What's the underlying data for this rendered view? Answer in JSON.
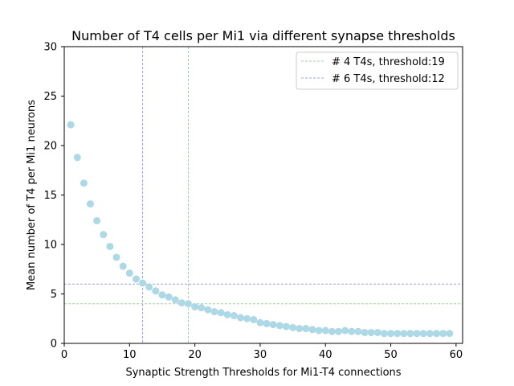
{
  "chart_data": {
    "type": "scatter",
    "title": "Number of T4 cells per Mi1 via different synapse thresholds",
    "xlabel": "Synaptic Strength Thresholds for Mi1-T4 connections",
    "ylabel": "Mean number of T4 per Mi1 neurons",
    "xlim": [
      0,
      61
    ],
    "ylim": [
      0,
      30
    ],
    "xticks": [
      0,
      10,
      20,
      30,
      40,
      50,
      60
    ],
    "yticks": [
      0,
      5,
      10,
      15,
      20,
      25,
      30
    ],
    "grid": false,
    "legend_position": "top-right",
    "point_color": "#add8e6",
    "points": {
      "x": [
        1,
        2,
        3,
        4,
        5,
        6,
        7,
        8,
        9,
        10,
        11,
        12,
        13,
        14,
        15,
        16,
        17,
        18,
        19,
        20,
        21,
        22,
        23,
        24,
        25,
        26,
        27,
        28,
        29,
        30,
        31,
        32,
        33,
        34,
        35,
        36,
        37,
        38,
        39,
        40,
        41,
        42,
        43,
        44,
        45,
        46,
        47,
        48,
        49,
        50,
        51,
        52,
        53,
        54,
        55,
        56,
        57,
        58,
        59
      ],
      "y": [
        22.1,
        18.8,
        16.2,
        14.1,
        12.4,
        11.0,
        9.8,
        8.7,
        7.8,
        7.1,
        6.5,
        6.1,
        5.7,
        5.3,
        4.9,
        4.7,
        4.4,
        4.1,
        4.0,
        3.7,
        3.6,
        3.4,
        3.2,
        3.1,
        2.9,
        2.8,
        2.6,
        2.5,
        2.4,
        2.1,
        2.0,
        1.9,
        1.8,
        1.7,
        1.6,
        1.5,
        1.5,
        1.4,
        1.3,
        1.3,
        1.2,
        1.2,
        1.3,
        1.2,
        1.2,
        1.1,
        1.1,
        1.1,
        1.0,
        1.0,
        1.0,
        1.0,
        1.0,
        1.0,
        1.0,
        1.0,
        1.0,
        1.0,
        1.0
      ]
    },
    "reference_lines": [
      {
        "label": "# 4 T4s, threshold:19",
        "x": 19,
        "y": 4,
        "color": "#9fd49f"
      },
      {
        "label": "# 6 T4s, threshold:12",
        "x": 12,
        "y": 6,
        "color": "#9f9fe0"
      }
    ]
  }
}
